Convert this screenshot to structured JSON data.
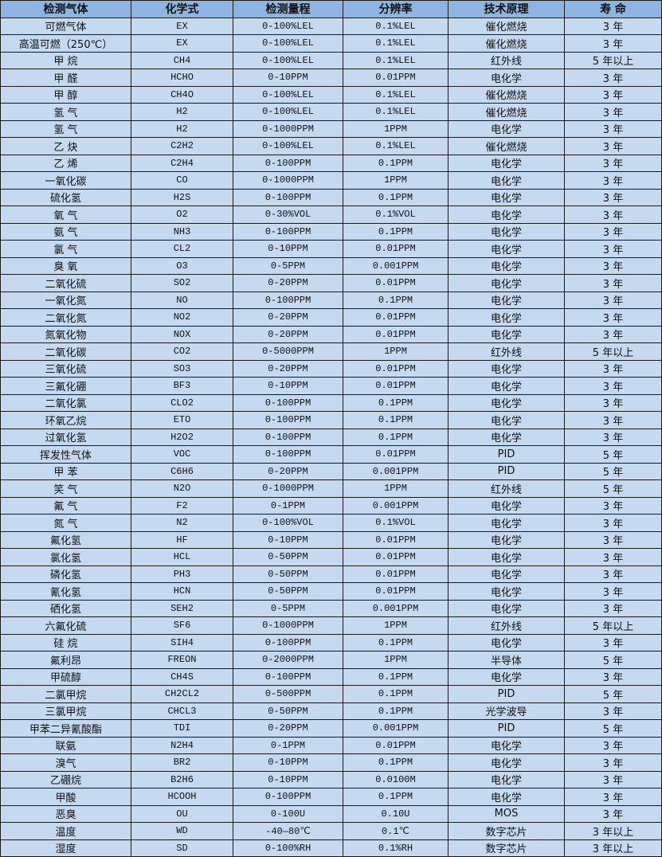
{
  "colors": {
    "header_bg": "#8db4e2",
    "cell_bg": "#c5d9f1",
    "border": "#1a1a1a"
  },
  "table": {
    "headers": [
      "检测气体",
      "化学式",
      "检测量程",
      "分辨率",
      "技术原理",
      "寿 命"
    ],
    "rows": [
      [
        "可燃气体",
        "EX",
        "0-100%LEL",
        "0.1%LEL",
        "催化燃烧",
        "3 年"
      ],
      [
        "高温可燃（250℃）",
        "EX",
        "0-100%LEL",
        "0.1%LEL",
        "催化燃烧",
        "3 年"
      ],
      [
        "甲 烷",
        "CH4",
        "0-100%LEL",
        "0.1%LEL",
        "红外线",
        "5 年以上"
      ],
      [
        "甲 醛",
        "HCHO",
        "0-10PPM",
        "0.01PPM",
        "电化学",
        "3 年"
      ],
      [
        "甲 醇",
        "CH4O",
        "0-100%LEL",
        "0.1%LEL",
        "催化燃烧",
        "3 年"
      ],
      [
        "氢 气",
        "H2",
        "0-100%LEL",
        "0.1%LEL",
        "催化燃烧",
        "3 年"
      ],
      [
        "氢 气",
        "H2",
        "0-1000PPM",
        "1PPM",
        "电化学",
        "3 年"
      ],
      [
        "乙 炔",
        "C2H2",
        "0-100%LEL",
        "0.1%LEL",
        "催化燃烧",
        "3 年"
      ],
      [
        "乙 烯",
        "C2H4",
        "0-100PPM",
        "0.1PPM",
        "电化学",
        "3 年"
      ],
      [
        "一氧化碳",
        "CO",
        "0-1000PPM",
        "1PPM",
        "电化学",
        "3 年"
      ],
      [
        "硫化氢",
        "H2S",
        "0-100PPM",
        "0.1PPM",
        "电化学",
        "3 年"
      ],
      [
        "氧 气",
        "O2",
        "0-30%VOL",
        "0.1%VOL",
        "电化学",
        "3 年"
      ],
      [
        "氨 气",
        "NH3",
        "0-100PPM",
        "0.1PPM",
        "电化学",
        "3 年"
      ],
      [
        "氯 气",
        "CL2",
        "0-10PPM",
        "0.01PPM",
        "电化学",
        "3 年"
      ],
      [
        "臭 氧",
        "O3",
        "0-5PPM",
        "0.001PPM",
        "电化学",
        "3 年"
      ],
      [
        "二氧化硫",
        "SO2",
        "0-20PPM",
        "0.01PPM",
        "电化学",
        "3 年"
      ],
      [
        "一氧化氮",
        "NO",
        "0-100PPM",
        "0.1PPM",
        "电化学",
        "3 年"
      ],
      [
        "二氧化氮",
        "NO2",
        "0-20PPM",
        "0.01PPM",
        "电化学",
        "3 年"
      ],
      [
        "氮氧化物",
        "NOX",
        "0-20PPM",
        "0.01PPM",
        "电化学",
        "3 年"
      ],
      [
        "二氧化碳",
        "CO2",
        "0-5000PPM",
        "1PPM",
        "红外线",
        "5 年以上"
      ],
      [
        "三氧化硫",
        "SO3",
        "0-20PPM",
        "0.01PPM",
        "电化学",
        "3 年"
      ],
      [
        "三氟化硼",
        "BF3",
        "0-10PPM",
        "0.01PPM",
        "电化学",
        "3 年"
      ],
      [
        "二氧化氯",
        "CLO2",
        "0-100PPM",
        "0.1PPM",
        "电化学",
        "3 年"
      ],
      [
        "环氧乙烷",
        "ETO",
        "0-100PPM",
        "0.1PPM",
        "电化学",
        "3 年"
      ],
      [
        "过氧化氢",
        "H2O2",
        "0-100PPM",
        "0.1PPM",
        "电化学",
        "3 年"
      ],
      [
        "挥发性气体",
        "VOC",
        "0-100PPM",
        "0.01PPM",
        "PID",
        "5 年"
      ],
      [
        "甲 苯",
        "C6H6",
        "0-20PPM",
        "0.001PPM",
        "PID",
        "5 年"
      ],
      [
        "笑 气",
        "N2O",
        "0-1000PPM",
        "1PPM",
        "红外线",
        "5 年"
      ],
      [
        "氟 气",
        "F2",
        "0-1PPM",
        "0.001PPM",
        "电化学",
        "3 年"
      ],
      [
        "氮 气",
        "N2",
        "0-100%VOL",
        "0.1%VOL",
        "电化学",
        "3 年"
      ],
      [
        "氟化氢",
        "HF",
        "0-10PPM",
        "0.01PPM",
        "电化学",
        "3 年"
      ],
      [
        "氯化氢",
        "HCL",
        "0-50PPM",
        "0.01PPM",
        "电化学",
        "3 年"
      ],
      [
        "磷化氢",
        "PH3",
        "0-50PPM",
        "0.01PPM",
        "电化学",
        "3 年"
      ],
      [
        "氰化氢",
        "HCN",
        "0-50PPM",
        "0.01PPM",
        "电化学",
        "3 年"
      ],
      [
        "硒化氢",
        "SEH2",
        "0-5PPM",
        "0.001PPM",
        "电化学",
        "3 年"
      ],
      [
        "六氟化硫",
        "SF6",
        "0-1000PPM",
        "1PPM",
        "红外线",
        "5 年以上"
      ],
      [
        "硅 烷",
        "SIH4",
        "0-100PPM",
        "0.1PPM",
        "电化学",
        "3 年"
      ],
      [
        "氟利昂",
        "FREON",
        "0-2000PPM",
        "1PPM",
        "半导体",
        "5 年"
      ],
      [
        "甲硫醇",
        "CH4S",
        "0-100PPM",
        "0.1PPM",
        "电化学",
        "3 年"
      ],
      [
        "二氯甲烷",
        "CH2CL2",
        "0-500PPM",
        "0.1PPM",
        "PID",
        "5 年"
      ],
      [
        "三氯甲烷",
        "CHCL3",
        "0-50PPM",
        "0.1PPM",
        "光学波导",
        "3 年"
      ],
      [
        "甲苯二异氰酸酯",
        "TDI",
        "0-20PPM",
        "0.001PPM",
        "PID",
        "5 年"
      ],
      [
        "联氨",
        "N2H4",
        "0-1PPM",
        "0.01PPM",
        "电化学",
        "3 年"
      ],
      [
        "溴气",
        "BR2",
        "0-10PPM",
        "0.1PPM",
        "电化学",
        "3 年"
      ],
      [
        "乙硼烷",
        "B2H6",
        "0-10PPM",
        "0.0100M",
        "电化学",
        "3 年"
      ],
      [
        "甲酸",
        "HCOOH",
        "0-100PPM",
        "0.1PPM",
        "电化学",
        "3 年"
      ],
      [
        "恶臭",
        "OU",
        "0-100U",
        "0.10U",
        "MOS",
        "3 年"
      ],
      [
        "温度",
        "WD",
        "-40—80℃",
        "0.1℃",
        "数字芯片",
        "3 年以上"
      ],
      [
        "湿度",
        "SD",
        "0-100%RH",
        "0.1%RH",
        "数字芯片",
        "3 年以上"
      ]
    ]
  }
}
